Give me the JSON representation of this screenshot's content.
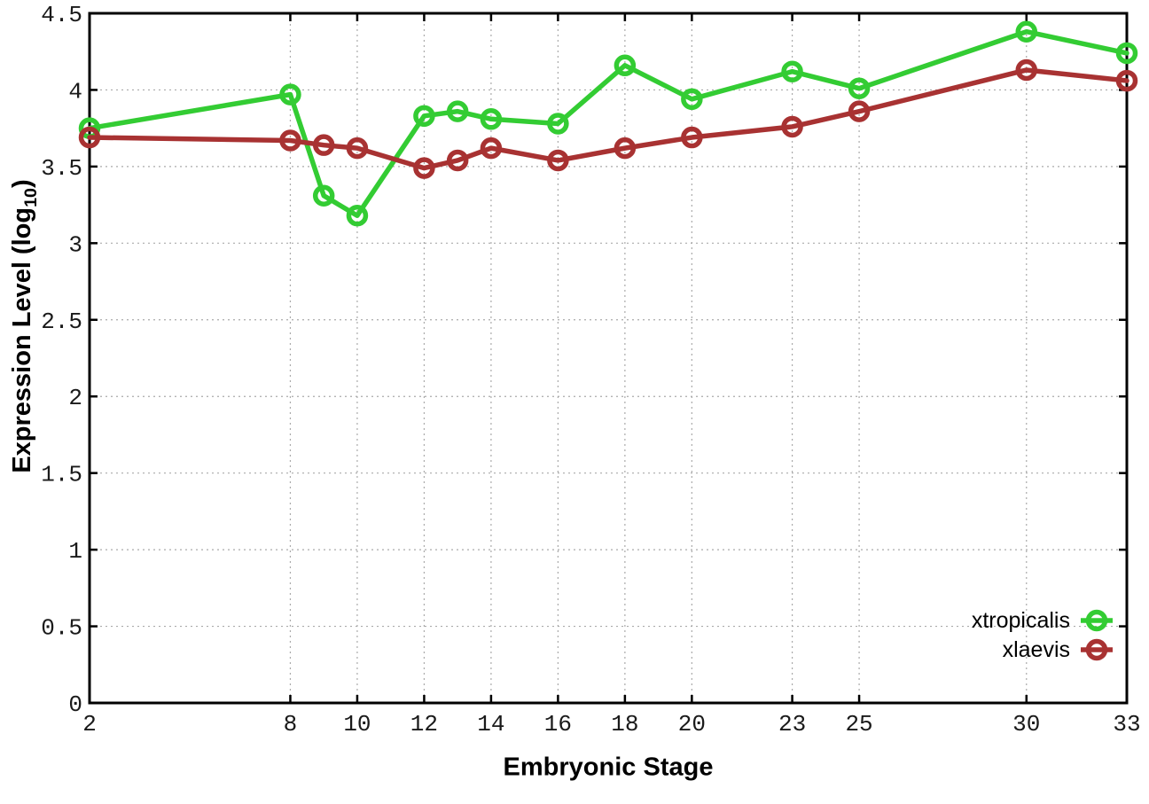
{
  "chart_data": {
    "type": "line",
    "title": "",
    "xlabel": "Embryonic Stage",
    "ylabel": {
      "text": "Expression Level (log",
      "sub": "10",
      "suffix": ")"
    },
    "x": [
      2,
      8,
      9,
      10,
      12,
      13,
      14,
      16,
      18,
      20,
      23,
      25,
      30,
      33
    ],
    "series": [
      {
        "name": "xtropicalis",
        "color": "#33cc33",
        "values": [
          3.75,
          3.97,
          3.31,
          3.18,
          3.83,
          3.86,
          3.81,
          3.78,
          4.16,
          3.94,
          4.12,
          4.01,
          4.38,
          4.24
        ]
      },
      {
        "name": "xlaevis",
        "color": "#a83232",
        "values": [
          3.69,
          3.67,
          3.64,
          3.62,
          3.49,
          3.54,
          3.62,
          3.54,
          3.62,
          3.69,
          3.76,
          3.86,
          4.13,
          4.06
        ]
      }
    ],
    "xlim": [
      2,
      33
    ],
    "ylim": [
      0,
      4.5
    ],
    "x_ticks": [
      2,
      8,
      10,
      12,
      14,
      16,
      18,
      20,
      23,
      25,
      30,
      33
    ],
    "y_ticks": [
      0,
      0.5,
      1,
      1.5,
      2,
      2.5,
      3,
      3.5,
      4,
      4.5
    ],
    "grid": true,
    "legend_position": "bottom-right",
    "colors": {
      "axis": "#000000",
      "grid": "#aaaaaa",
      "tick_label": "#1a1a1a",
      "background": "#ffffff"
    }
  }
}
